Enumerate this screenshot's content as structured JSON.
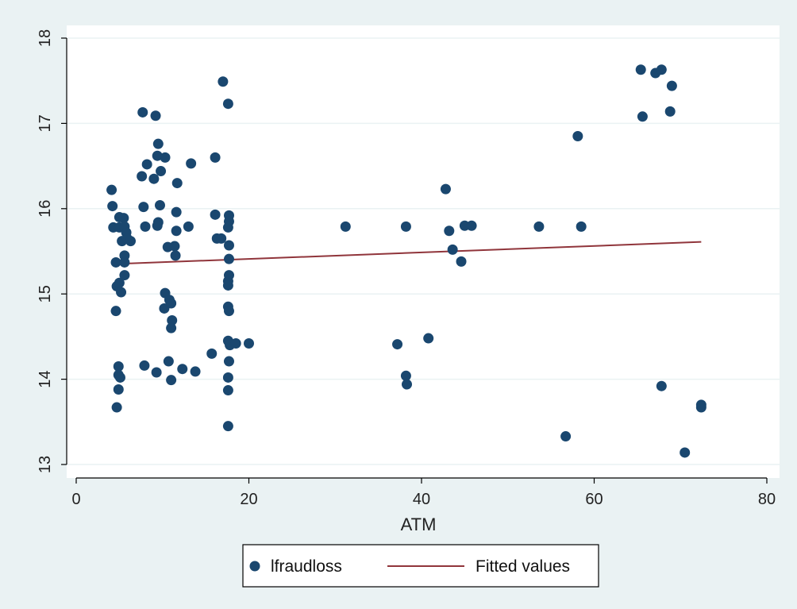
{
  "chart_data": {
    "type": "scatter",
    "title": "",
    "xlabel": "ATM",
    "ylabel": "",
    "xlim": [
      0,
      80
    ],
    "ylim": [
      13,
      18
    ],
    "xticks": [
      0,
      20,
      40,
      60,
      80
    ],
    "yticks": [
      13,
      14,
      15,
      16,
      17,
      18
    ],
    "grid": "horizontal",
    "legend_placement": "bottom",
    "series": [
      {
        "name": "lfraudloss",
        "type": "scatter",
        "color": "#1a476f",
        "points": [
          [
            4.1,
            16.22
          ],
          [
            4.2,
            16.03
          ],
          [
            4.3,
            15.78
          ],
          [
            4.6,
            15.37
          ],
          [
            4.7,
            15.09
          ],
          [
            4.6,
            14.8
          ],
          [
            4.9,
            14.15
          ],
          [
            4.9,
            14.05
          ],
          [
            5.1,
            14.02
          ],
          [
            4.9,
            13.88
          ],
          [
            4.7,
            13.67
          ],
          [
            5.0,
            15.13
          ],
          [
            5.2,
            15.02
          ],
          [
            5.0,
            15.9
          ],
          [
            5.0,
            15.78
          ],
          [
            5.3,
            15.62
          ],
          [
            5.5,
            15.89
          ],
          [
            5.6,
            15.79
          ],
          [
            5.8,
            15.72
          ],
          [
            5.9,
            15.65
          ],
          [
            5.6,
            15.45
          ],
          [
            5.6,
            15.37
          ],
          [
            5.6,
            15.22
          ],
          [
            6.3,
            15.62
          ],
          [
            7.7,
            17.13
          ],
          [
            7.6,
            16.38
          ],
          [
            8.2,
            16.52
          ],
          [
            7.8,
            16.02
          ],
          [
            8.0,
            15.79
          ],
          [
            7.9,
            14.16
          ],
          [
            9.2,
            17.09
          ],
          [
            9.5,
            16.76
          ],
          [
            9.4,
            16.62
          ],
          [
            9.0,
            16.35
          ],
          [
            9.8,
            16.44
          ],
          [
            10.3,
            16.6
          ],
          [
            9.7,
            16.04
          ],
          [
            9.4,
            15.8
          ],
          [
            9.5,
            15.84
          ],
          [
            9.3,
            14.08
          ],
          [
            10.2,
            14.83
          ],
          [
            10.3,
            15.01
          ],
          [
            10.6,
            15.55
          ],
          [
            10.8,
            14.93
          ],
          [
            11.0,
            14.89
          ],
          [
            11.1,
            14.69
          ],
          [
            11.0,
            14.6
          ],
          [
            10.7,
            14.21
          ],
          [
            11.0,
            13.99
          ],
          [
            11.4,
            15.56
          ],
          [
            11.5,
            15.45
          ],
          [
            11.7,
            16.3
          ],
          [
            11.6,
            15.96
          ],
          [
            11.6,
            15.74
          ],
          [
            12.3,
            14.12
          ],
          [
            13.0,
            15.79
          ],
          [
            13.3,
            16.53
          ],
          [
            13.8,
            14.09
          ],
          [
            15.7,
            14.3
          ],
          [
            16.1,
            16.6
          ],
          [
            16.1,
            15.93
          ],
          [
            16.3,
            15.65
          ],
          [
            16.8,
            15.65
          ],
          [
            17.0,
            17.49
          ],
          [
            17.6,
            17.23
          ],
          [
            17.7,
            15.92
          ],
          [
            17.7,
            15.85
          ],
          [
            17.6,
            15.78
          ],
          [
            17.7,
            15.57
          ],
          [
            17.7,
            15.41
          ],
          [
            17.7,
            15.22
          ],
          [
            17.6,
            15.15
          ],
          [
            17.6,
            15.1
          ],
          [
            17.6,
            14.85
          ],
          [
            17.7,
            14.8
          ],
          [
            17.6,
            14.45
          ],
          [
            17.8,
            14.4
          ],
          [
            17.7,
            14.21
          ],
          [
            17.6,
            14.02
          ],
          [
            17.6,
            13.87
          ],
          [
            17.6,
            13.45
          ],
          [
            18.5,
            14.42
          ],
          [
            20.0,
            14.42
          ],
          [
            31.2,
            15.79
          ],
          [
            37.2,
            14.41
          ],
          [
            38.2,
            15.79
          ],
          [
            38.2,
            14.04
          ],
          [
            38.3,
            13.94
          ],
          [
            40.8,
            14.48
          ],
          [
            42.8,
            16.23
          ],
          [
            43.2,
            15.74
          ],
          [
            43.6,
            15.52
          ],
          [
            44.6,
            15.38
          ],
          [
            45.0,
            15.8
          ],
          [
            45.8,
            15.8
          ],
          [
            53.6,
            15.79
          ],
          [
            56.7,
            13.33
          ],
          [
            58.1,
            16.85
          ],
          [
            58.5,
            15.79
          ],
          [
            65.4,
            17.63
          ],
          [
            65.6,
            17.08
          ],
          [
            67.1,
            17.59
          ],
          [
            67.8,
            17.63
          ],
          [
            69.0,
            17.44
          ],
          [
            68.8,
            17.14
          ],
          [
            67.8,
            13.92
          ],
          [
            70.5,
            13.14
          ],
          [
            72.4,
            13.67
          ],
          [
            72.4,
            13.7
          ]
        ]
      },
      {
        "name": "Fitted values",
        "type": "line",
        "color": "#90353b",
        "x": [
          4.1,
          72.4
        ],
        "y": [
          15.35,
          15.61
        ]
      }
    ],
    "legend": [
      {
        "label": "lfraudloss",
        "marker": "circle",
        "color": "#1a476f"
      },
      {
        "label": "Fitted values",
        "marker": "line",
        "color": "#90353b"
      }
    ]
  },
  "colors": {
    "outer_background": "#eaf2f3",
    "plot_background": "#ffffff",
    "gridline": "#eaf2f3",
    "axis": "#000000",
    "legend_border": "#000000"
  }
}
